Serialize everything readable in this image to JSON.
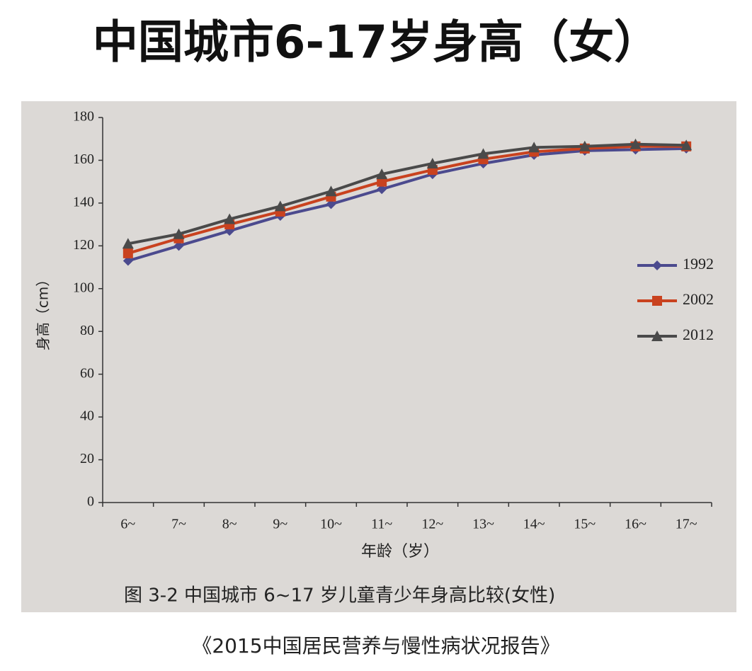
{
  "chart_data": {
    "type": "line",
    "title": "中国城市6-17岁身高（女）",
    "caption": "图 3-2   中国城市 6~17 岁儿童青少年身高比较(女性)",
    "source": "《2015中国居民营养与慢性病状况报告》",
    "x_label": "年龄（岁）",
    "y_label": "身高（cm）",
    "categories": [
      "6~",
      "7~",
      "8~",
      "9~",
      "10~",
      "11~",
      "12~",
      "13~",
      "14~",
      "15~",
      "16~",
      "17~"
    ],
    "series": [
      {
        "name": "1992",
        "color": "#4b4a8e",
        "marker": "diamond",
        "values": [
          113,
          120,
          127,
          134,
          139.5,
          146.5,
          153.5,
          158.5,
          162.5,
          164.5,
          165,
          165.5
        ]
      },
      {
        "name": "2002",
        "color": "#c9421f",
        "marker": "square",
        "values": [
          116.5,
          123.5,
          130,
          136,
          143,
          150,
          155.5,
          160.5,
          164,
          165.5,
          166.5,
          166.5
        ]
      },
      {
        "name": "2012",
        "color": "#4a4a4a",
        "marker": "triangle",
        "values": [
          121,
          125.5,
          132.5,
          138.5,
          145.5,
          153.5,
          158.5,
          163,
          166,
          166.5,
          167.5,
          167
        ]
      }
    ],
    "ylim": [
      0,
      180
    ],
    "yticks": [
      0,
      20,
      40,
      60,
      80,
      100,
      120,
      140,
      160,
      180
    ],
    "grid": false,
    "legend": "right"
  }
}
